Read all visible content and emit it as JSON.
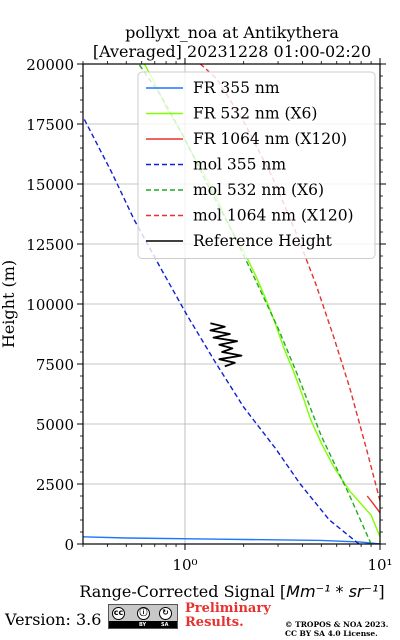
{
  "chart_data": {
    "type": "line",
    "title_line1": "pollyxt_noa at Antikythera",
    "title_line2": "[Averaged] 20231228 01:00-02:20",
    "ylabel": "Height (m)",
    "xlabel_text": "Range-Corrected Signal [",
    "xlabel_unit": "Mm⁻¹ * sr⁻¹",
    "xlabel_close": "]",
    "xscale": "log",
    "xlim": [
      0.3,
      10
    ],
    "ylim": [
      0,
      20000
    ],
    "y_ticks": [
      0,
      2500,
      5000,
      7500,
      10000,
      12500,
      15000,
      17500,
      20000
    ],
    "x_tick_labels": [
      {
        "value": 1,
        "label": "10⁰"
      },
      {
        "value": 10,
        "label": "10¹"
      }
    ],
    "grid": true,
    "legend_position": "top-right",
    "series": [
      {
        "name": "FR 355 nm",
        "color": "#1f77ff",
        "style": "solid",
        "points": [
          [
            10,
            0
          ],
          [
            8.0,
            80
          ],
          [
            5.0,
            150
          ],
          [
            1.5,
            200
          ],
          [
            0.5,
            250
          ],
          [
            0.3,
            300
          ]
        ]
      },
      {
        "name": "FR 532 nm (X6)",
        "color": "#7fff00",
        "style": "solid",
        "points": [
          [
            10,
            300
          ],
          [
            9.0,
            1200
          ],
          [
            7.0,
            2200
          ],
          [
            5.8,
            3200
          ],
          [
            5.0,
            4200
          ],
          [
            4.4,
            5200
          ],
          [
            4.0,
            6200
          ],
          [
            3.6,
            7200
          ],
          [
            3.2,
            8200
          ],
          [
            2.9,
            9200
          ],
          [
            2.6,
            10200
          ],
          [
            2.3,
            11200
          ],
          [
            2.0,
            12200
          ],
          [
            1.7,
            13200
          ],
          [
            1.5,
            14200
          ],
          [
            1.3,
            15200
          ],
          [
            1.1,
            16200
          ],
          [
            0.95,
            17200
          ],
          [
            0.8,
            18200
          ],
          [
            0.7,
            19200
          ],
          [
            0.62,
            20000
          ]
        ]
      },
      {
        "name": "FR 1064 nm (X120)",
        "color": "#e8302f",
        "style": "solid",
        "points": [
          [
            10,
            1300
          ],
          [
            9.2,
            1700
          ],
          [
            8.6,
            2000
          ]
        ]
      },
      {
        "name": "mol 355 nm",
        "color": "#1020d0",
        "style": "dashed",
        "points": [
          [
            7.8,
            0
          ],
          [
            5.5,
            1000
          ],
          [
            3.9,
            2500
          ],
          [
            2.9,
            4000
          ],
          [
            2.0,
            5700
          ],
          [
            1.45,
            7500
          ],
          [
            1.03,
            9500
          ],
          [
            0.75,
            11500
          ],
          [
            0.55,
            13500
          ],
          [
            0.42,
            15500
          ],
          [
            0.3,
            17800
          ]
        ]
      },
      {
        "name": "mol 532 nm (X6)",
        "color": "#22aa22",
        "style": "dashed",
        "points": [
          [
            9.0,
            0
          ],
          [
            7.0,
            2000
          ],
          [
            5.0,
            4500
          ],
          [
            3.8,
            7000
          ],
          [
            3.0,
            9000
          ],
          [
            2.3,
            11000
          ],
          [
            1.75,
            13000
          ],
          [
            1.3,
            15000
          ],
          [
            0.98,
            17000
          ],
          [
            0.75,
            18700
          ],
          [
            0.58,
            20000
          ]
        ]
      },
      {
        "name": "mol 1064 nm (X120)",
        "color": "#e8302f",
        "style": "dashed",
        "points": [
          [
            10,
            1800
          ],
          [
            8.5,
            4000
          ],
          [
            7.0,
            6500
          ],
          [
            5.8,
            8600
          ],
          [
            4.7,
            10800
          ],
          [
            3.7,
            13000
          ],
          [
            2.8,
            15300
          ],
          [
            2.0,
            17600
          ],
          [
            1.45,
            19400
          ],
          [
            1.2,
            20000
          ]
        ]
      },
      {
        "name": "Reference Height",
        "color": "#000000",
        "style": "solid",
        "points": [
          [
            1.6,
            7400
          ],
          [
            1.8,
            7550
          ],
          [
            1.5,
            7700
          ],
          [
            1.95,
            7850
          ],
          [
            1.55,
            8000
          ],
          [
            1.75,
            8150
          ],
          [
            1.5,
            8300
          ],
          [
            1.85,
            8450
          ],
          [
            1.4,
            8600
          ],
          [
            1.7,
            8750
          ],
          [
            1.35,
            8900
          ],
          [
            1.6,
            9050
          ],
          [
            1.35,
            9200
          ]
        ]
      }
    ]
  },
  "footer": {
    "version": "Version: 3.6",
    "badge_cc": "cc",
    "badge_by": "BY",
    "badge_sa": "SA",
    "prelim_line1": "Preliminary",
    "prelim_line2": "Results.",
    "copyright_line1": "© TROPOS & NOA 2023.",
    "copyright_line2": "CC BY SA 4.0 License."
  }
}
